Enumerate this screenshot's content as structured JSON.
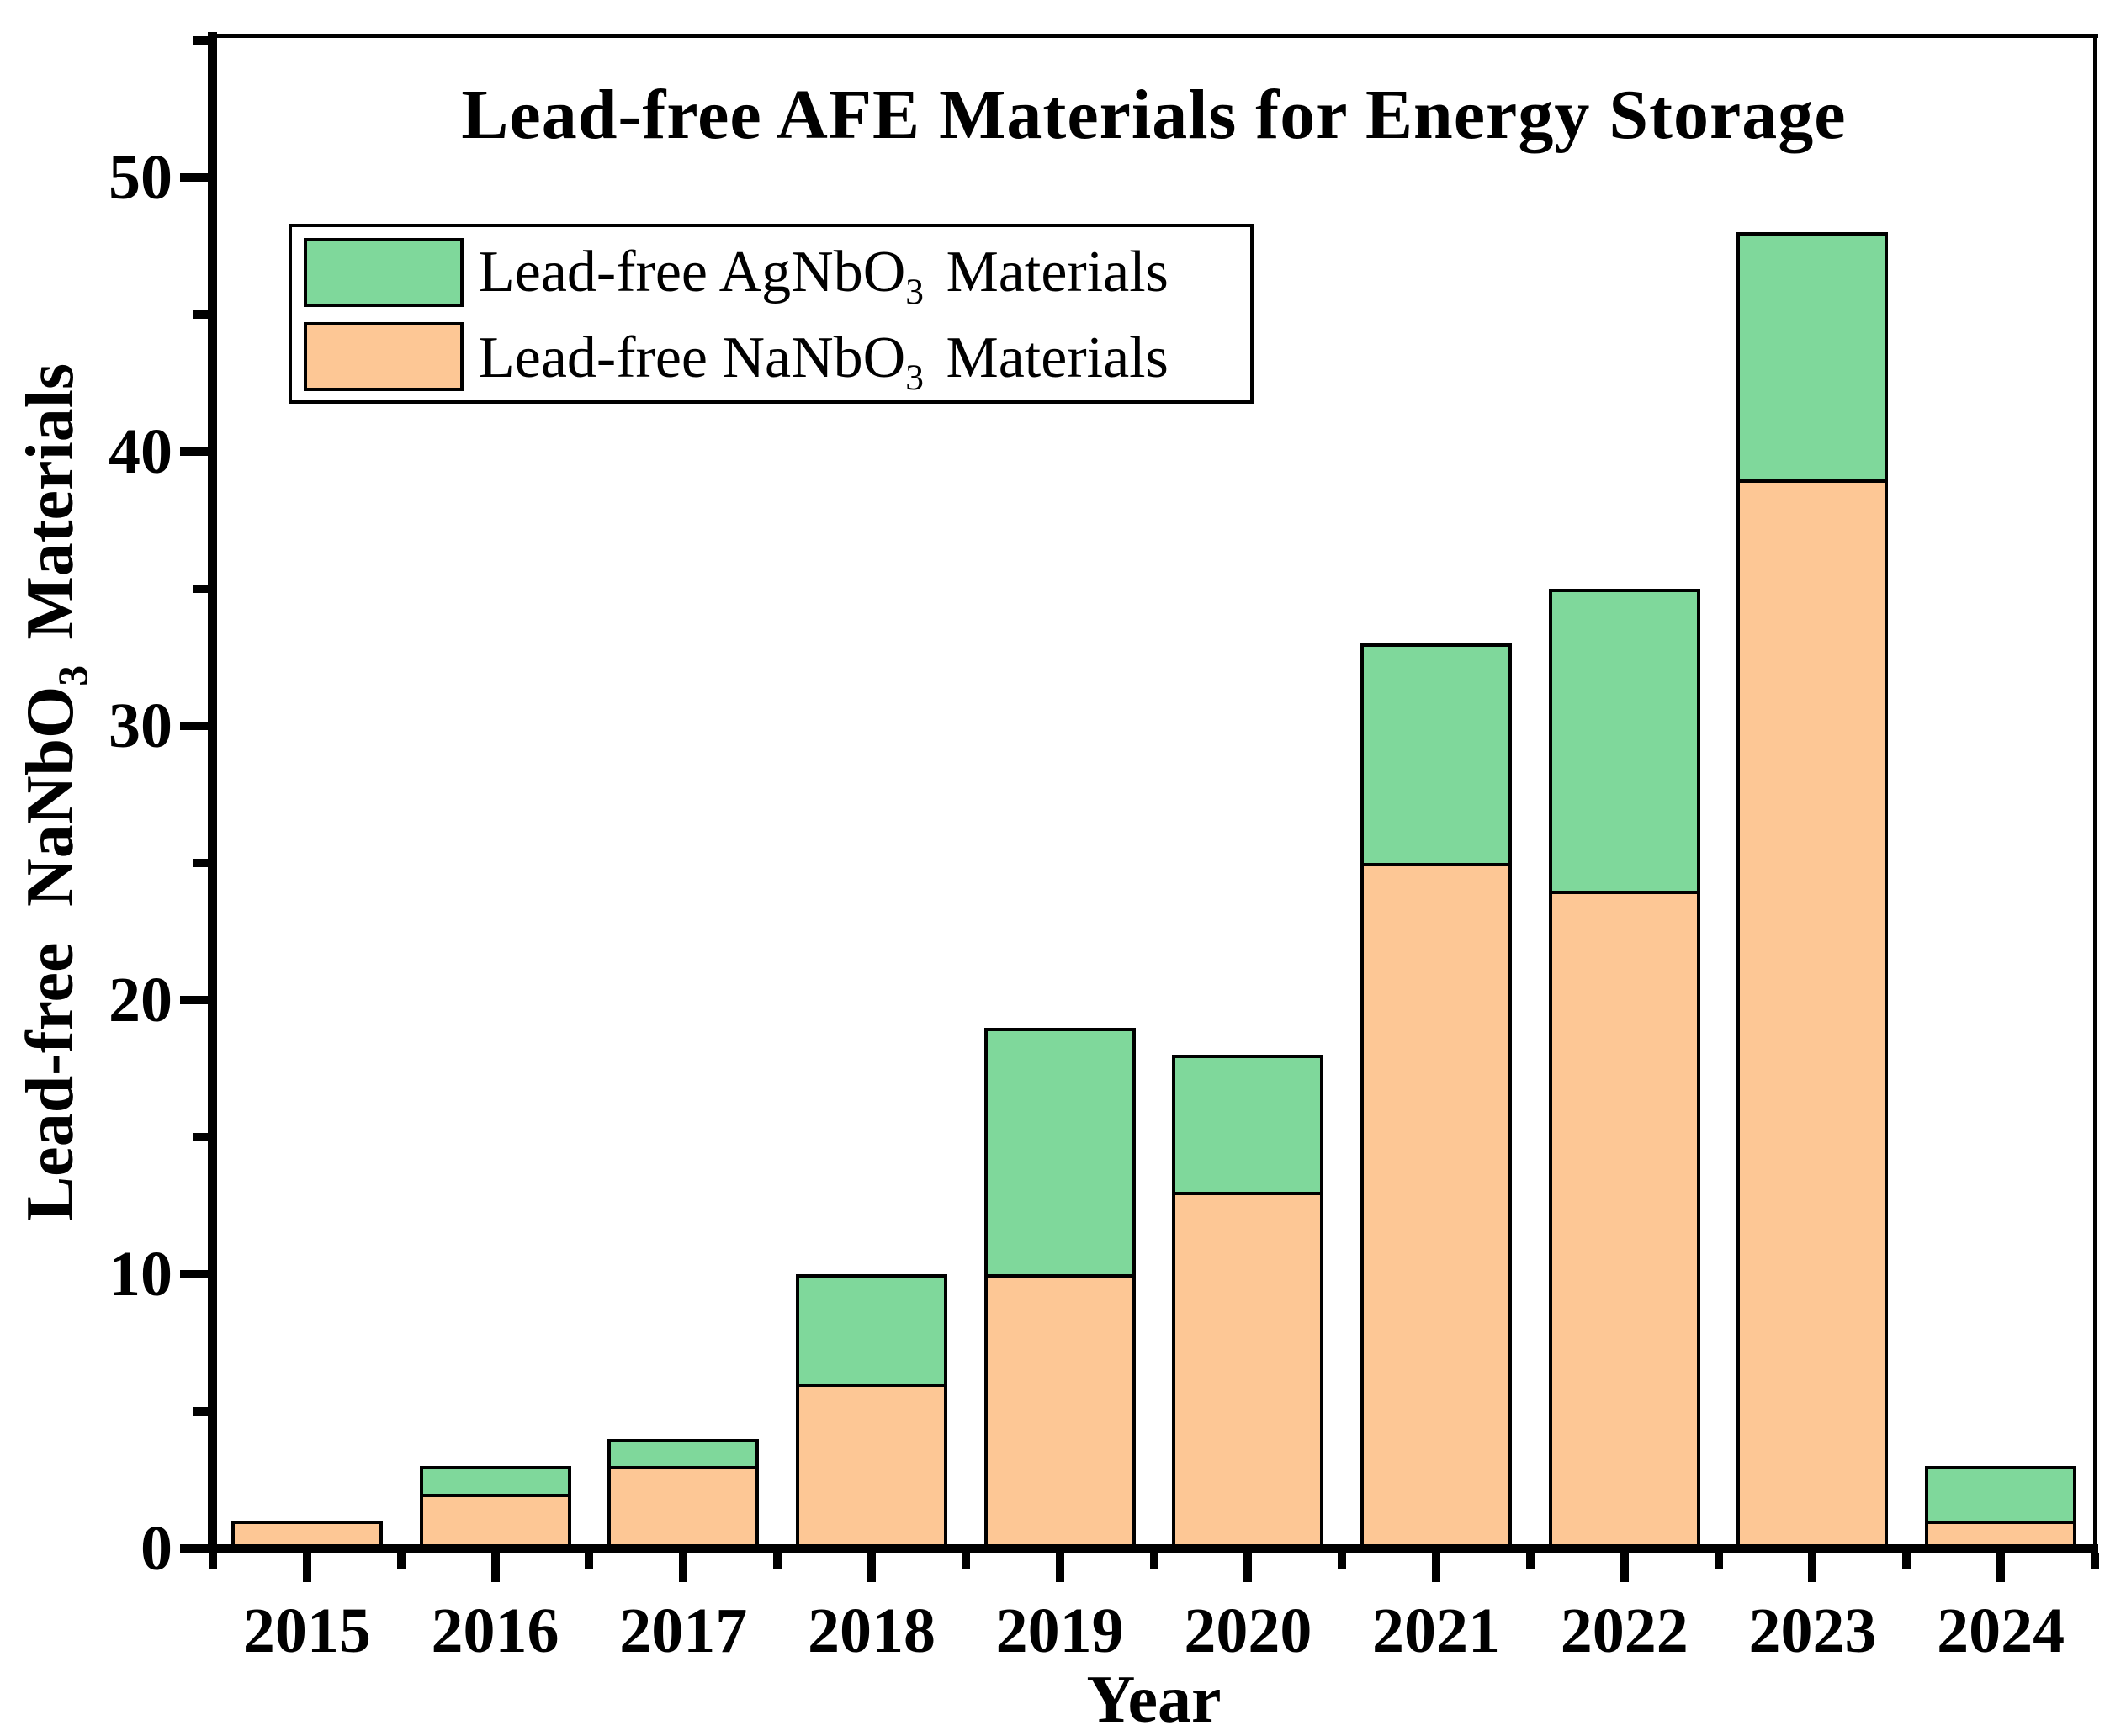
{
  "chart": {
    "title": "Lead-free AFE Materials for Energy Storage",
    "x_axis": {
      "label": "Year",
      "tick_labels": [
        "2015",
        "2016",
        "2017",
        "2018",
        "2019",
        "2020",
        "2021",
        "2022",
        "2023",
        "2024"
      ]
    },
    "y_axis": {
      "label_prefix": "Lead-free NaNbO",
      "label_sub": "3",
      "label_suffix": "Materials",
      "tick_labels": [
        "0",
        "10",
        "20",
        "30",
        "40",
        "50"
      ]
    }
  },
  "legend": {
    "items": [
      {
        "name": "agnbo3-series",
        "label_prefix": "Lead-free AgNbO",
        "label_sub": "3",
        "label_suffix": "Materials",
        "color": "#7fd89b"
      },
      {
        "name": "nanbo3-series",
        "label_prefix": "Lead-free NaNbO",
        "label_sub": "3",
        "label_suffix": "Materials",
        "color": "#fdc795"
      }
    ]
  },
  "chart_data": {
    "type": "bar",
    "stacked": true,
    "title": "Lead-free AFE Materials for Energy Storage",
    "xlabel": "Year",
    "ylabel": "Lead-free NaNbO3 Materials",
    "categories": [
      "2015",
      "2016",
      "2017",
      "2018",
      "2019",
      "2020",
      "2021",
      "2022",
      "2023",
      "2024"
    ],
    "series": [
      {
        "name": "Lead-free NaNbO3 Materials",
        "stack_position": "bottom",
        "color": "#fdc795",
        "values": [
          1,
          2,
          3,
          6,
          10,
          13,
          25,
          24,
          39,
          1
        ]
      },
      {
        "name": "Lead-free AgNbO3 Materials",
        "stack_position": "top",
        "color": "#7fd89b",
        "values": [
          0,
          1,
          1,
          4,
          9,
          5,
          8,
          11,
          9,
          2
        ]
      }
    ],
    "totals": [
      1,
      3,
      4,
      10,
      19,
      18,
      33,
      35,
      48,
      3
    ],
    "ylim": [
      0,
      55.15
    ],
    "yticks_major": [
      0,
      10,
      20,
      30,
      40,
      50
    ],
    "yticks_minor": [
      5,
      15,
      25,
      35,
      45,
      55
    ],
    "grid": false,
    "legend_position": "upper-left",
    "bar_outline_color": "#000000",
    "axis_color": "#000000"
  }
}
